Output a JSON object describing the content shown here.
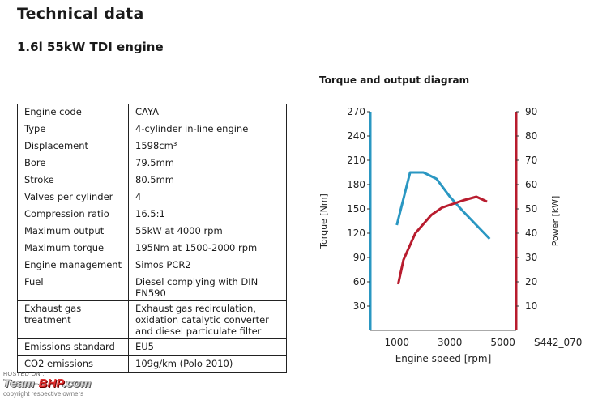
{
  "page": {
    "title": "Technical data",
    "subtitle": "1.6l 55kW TDI engine"
  },
  "specs": [
    {
      "label": "Engine code",
      "value": "CAYA"
    },
    {
      "label": "Type",
      "value": "4-cylinder in-line engine"
    },
    {
      "label": "Displacement",
      "value": "1598cm³"
    },
    {
      "label": "Bore",
      "value": "79.5mm"
    },
    {
      "label": "Stroke",
      "value": "80.5mm"
    },
    {
      "label": "Valves per cylinder",
      "value": "4"
    },
    {
      "label": "Compression ratio",
      "value": "16.5:1"
    },
    {
      "label": "Maximum output",
      "value": "55kW at 4000 rpm"
    },
    {
      "label": "Maximum torque",
      "value": "195Nm at 1500-2000 rpm"
    },
    {
      "label": "Engine management",
      "value": "Simos PCR2"
    },
    {
      "label": "Fuel",
      "value": "Diesel complying with DIN EN590"
    },
    {
      "label": "Exhaust gas treatment",
      "value": "Exhaust gas recirculation, oxidation catalytic converter and diesel particulate filter"
    },
    {
      "label": "Emissions standard",
      "value": "EU5"
    },
    {
      "label": "CO2 emissions",
      "value": "109g/km (Polo 2010)"
    }
  ],
  "chart_data": {
    "type": "line",
    "title": "Torque and output diagram",
    "xlabel": "Engine speed [rpm]",
    "ylabel_left": "Torque [Nm]",
    "ylabel_right": "Power [kW]",
    "xlim": [
      0,
      5500
    ],
    "ylim_left": [
      0,
      270
    ],
    "ylim_right": [
      0,
      90
    ],
    "x_ticks": [
      1000,
      3000,
      5000
    ],
    "y_ticks_left": [
      30,
      60,
      90,
      120,
      150,
      180,
      210,
      240,
      270
    ],
    "y_ticks_right": [
      10,
      20,
      30,
      40,
      50,
      60,
      70,
      80,
      90
    ],
    "figure_code": "S442_070",
    "grid": false,
    "series": [
      {
        "name": "Torque",
        "axis": "left",
        "color": "#2a97c2",
        "x": [
          1000,
          1500,
          2000,
          2500,
          3000,
          3500,
          4000,
          4500
        ],
        "y": [
          130,
          195,
          195,
          187,
          165,
          147,
          130,
          113
        ]
      },
      {
        "name": "Power",
        "axis": "right",
        "color": "#b81c2e",
        "x": [
          1050,
          1250,
          1700,
          2300,
          2700,
          3500,
          4000,
          4400
        ],
        "y": [
          19,
          29,
          40,
          47.5,
          50.5,
          53.5,
          55,
          53
        ]
      }
    ]
  },
  "watermark": {
    "hosted_on": "HOSTED ON :",
    "brand_prefix": "Team-",
    "brand_bhp": "BHP",
    "brand_suffix": ".com",
    "copyright": "copyright respective owners"
  }
}
